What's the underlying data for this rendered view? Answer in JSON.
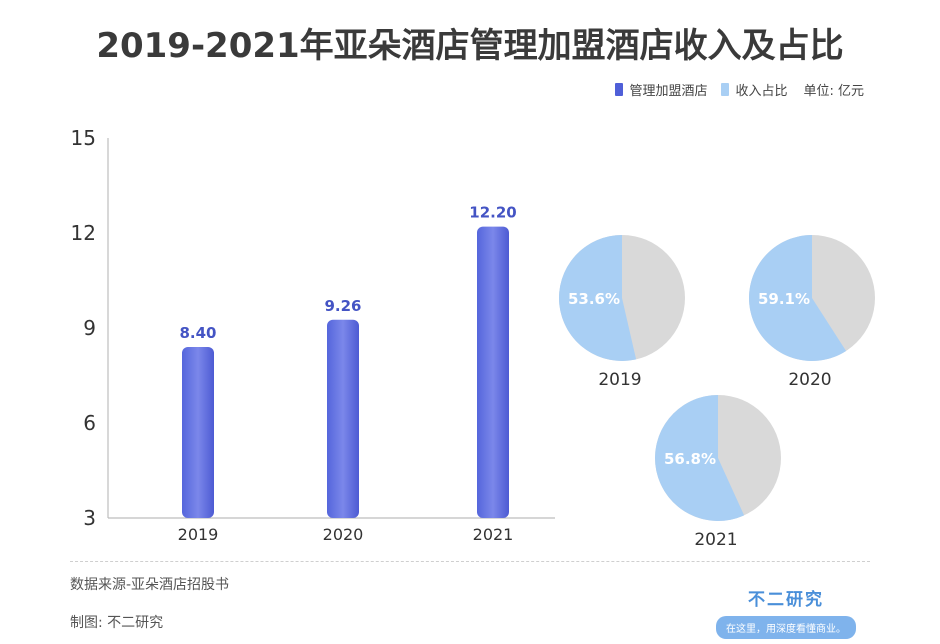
{
  "title": "2019-2021年亚朵酒店管理加盟酒店收入及占比",
  "legend": {
    "items": [
      {
        "label": "管理加盟酒店",
        "color": "#4f5fd8"
      },
      {
        "label": "收入占比",
        "color": "#a9cff4"
      }
    ],
    "unit": "单位: 亿元"
  },
  "chart_data": [
    {
      "type": "bar",
      "categories": [
        "2019",
        "2020",
        "2021"
      ],
      "series": [
        {
          "name": "管理加盟酒店",
          "values": [
            8.4,
            9.26,
            12.2
          ]
        }
      ],
      "data_labels": [
        "8.40",
        "9.26",
        "12.20"
      ],
      "yticks": [
        "3",
        "6",
        "9",
        "12",
        "15"
      ],
      "ylim": [
        3,
        15
      ],
      "grid": false
    },
    {
      "type": "pie",
      "series": [
        {
          "name": "收入占比",
          "year": "2019",
          "value": 53.6,
          "label": "53.6%"
        },
        {
          "name": "收入占比",
          "year": "2020",
          "value": 59.1,
          "label": "59.1%"
        },
        {
          "name": "收入占比",
          "year": "2021",
          "value": 56.8,
          "label": "56.8%"
        }
      ],
      "colors": {
        "share": "#a9cff4",
        "rest": "#d9d9d9"
      }
    }
  ],
  "footer": {
    "source": "数据来源-亚朵酒店招股书",
    "maker": "制图: 不二研究",
    "brand_name": "不二研究",
    "brand_slogan": "在这里，用深度看懂商业。"
  }
}
